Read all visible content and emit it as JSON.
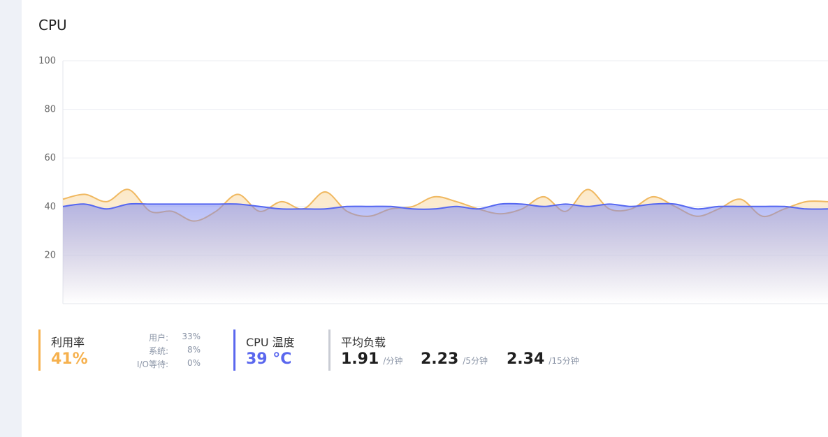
{
  "panel": {
    "title": "CPU"
  },
  "chart_data": {
    "type": "area",
    "ylim": [
      0,
      100
    ],
    "yticks": [
      20,
      40,
      60,
      80,
      100
    ],
    "grid": true,
    "series": [
      {
        "color": "#f0b860",
        "fill": "#fbe6c2",
        "values": [
          43,
          45,
          42,
          47,
          38,
          38,
          34,
          38,
          45,
          38,
          42,
          39,
          46,
          38,
          36,
          39,
          40,
          44,
          42,
          39,
          37,
          39,
          44,
          38,
          47,
          39,
          39,
          44,
          40,
          36,
          39,
          43,
          36,
          39,
          42,
          42
        ]
      },
      {
        "color": "#5466f1",
        "fill": "#7b87f0",
        "values": [
          40,
          41,
          39,
          41,
          41,
          41,
          41,
          41,
          41,
          40,
          39,
          39,
          39,
          40,
          40,
          40,
          39,
          39,
          40,
          39,
          41,
          41,
          40,
          41,
          40,
          41,
          40,
          41,
          41,
          39,
          40,
          40,
          40,
          40,
          39,
          39
        ]
      }
    ]
  },
  "stats": {
    "usage": {
      "label": "利用率",
      "value": "41%",
      "color": "#f6b14e",
      "rows": [
        {
          "key": "用户:",
          "val": "33%"
        },
        {
          "key": "系统:",
          "val": "8%"
        },
        {
          "key": "I/O等待:",
          "val": "0%"
        }
      ]
    },
    "temperature": {
      "label": "CPU 温度",
      "value": "39 °C",
      "color": "#5a67ee"
    },
    "load": {
      "label": "平均负载",
      "color": "#c9ccd4",
      "items": [
        {
          "value": "1.91",
          "unit": "/分钟"
        },
        {
          "value": "2.23",
          "unit": "/5分钟"
        },
        {
          "value": "2.34",
          "unit": "/15分钟"
        }
      ]
    }
  }
}
